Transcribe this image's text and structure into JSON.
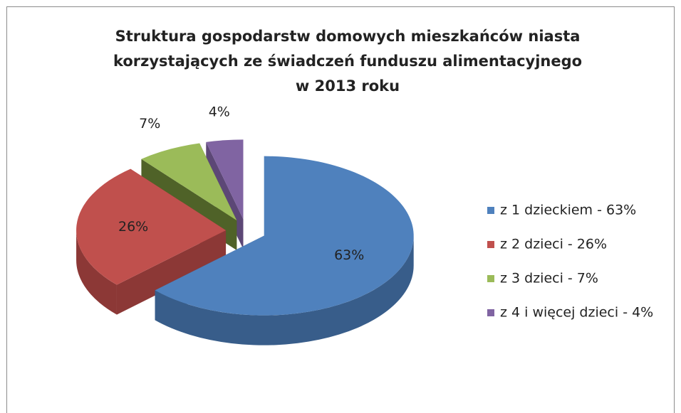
{
  "chart_data": {
    "type": "pie",
    "title": [
      "Struktura gospodarstw domowych mieszkańców niasta",
      "korzystających ze świadczeń funduszu alimentacyjnego",
      "w  2013 roku"
    ],
    "categories": [
      "z 1 dzieckiem - 63%",
      "z 2 dzieci - 26%",
      "z 3 dzieci - 7%",
      "z 4 i więcej dzieci - 4%"
    ],
    "values": [
      63,
      26,
      7,
      4
    ],
    "value_labels": [
      "63%",
      "26%",
      "7%",
      "4%"
    ],
    "colors": [
      "#4f81bd",
      "#c0504d",
      "#9bbb59",
      "#8064a2"
    ],
    "side_colors": [
      "#385d8a",
      "#8c3836",
      "#4f6228",
      "#5c4776"
    ],
    "legend": "right"
  }
}
